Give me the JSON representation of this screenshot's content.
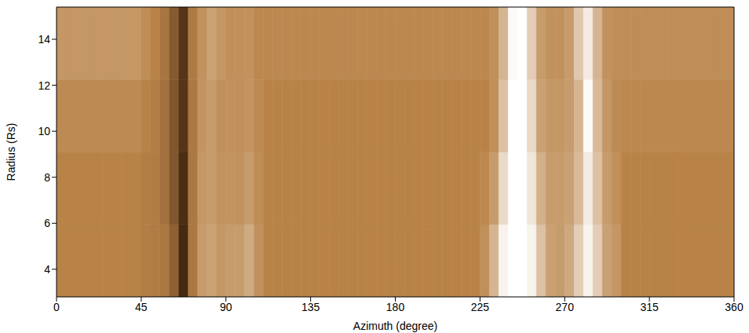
{
  "chart_data": {
    "type": "heatmap",
    "xlabel": "Azimuth (degree)",
    "ylabel": "Radius (Rs)",
    "xlim": [
      0,
      360
    ],
    "xticks": [
      0,
      45,
      90,
      135,
      180,
      225,
      270,
      315,
      360
    ],
    "ylim": [
      2.8,
      15.4
    ],
    "yticks": [
      4,
      6,
      8,
      10,
      12,
      14
    ],
    "zlim": [
      0,
      1
    ],
    "x_edges": [
      0,
      5,
      10,
      15,
      20,
      25,
      30,
      35,
      40,
      45,
      50,
      55,
      60,
      65,
      70,
      75,
      80,
      85,
      90,
      95,
      100,
      105,
      110,
      115,
      120,
      125,
      130,
      135,
      140,
      145,
      150,
      155,
      160,
      165,
      170,
      175,
      180,
      185,
      190,
      195,
      200,
      205,
      210,
      215,
      220,
      225,
      230,
      235,
      240,
      245,
      250,
      255,
      260,
      265,
      270,
      275,
      280,
      285,
      290,
      295,
      300,
      305,
      310,
      315,
      320,
      325,
      330,
      335,
      340,
      345,
      350,
      355,
      360
    ],
    "y_edges": [
      2.8,
      5.95,
      9.1,
      12.25,
      15.4
    ],
    "cells": [
      [
        0.5,
        0.5,
        0.5,
        0.5,
        0.5,
        0.5,
        0.5,
        0.5,
        0.5,
        0.48,
        0.47,
        0.45,
        0.35,
        0.1,
        0.45,
        0.6,
        0.62,
        0.58,
        0.6,
        0.6,
        0.66,
        0.56,
        0.5,
        0.5,
        0.5,
        0.5,
        0.5,
        0.5,
        0.5,
        0.5,
        0.5,
        0.5,
        0.5,
        0.5,
        0.5,
        0.5,
        0.5,
        0.5,
        0.5,
        0.5,
        0.5,
        0.5,
        0.5,
        0.5,
        0.5,
        0.55,
        0.7,
        0.95,
        1,
        1,
        0.95,
        0.75,
        0.62,
        0.6,
        0.65,
        0.8,
        0.95,
        0.8,
        0.62,
        0.58,
        0.5,
        0.5,
        0.5,
        0.5,
        0.5,
        0.5,
        0.5,
        0.5,
        0.5,
        0.5,
        0.5,
        0.5
      ],
      [
        0.5,
        0.5,
        0.5,
        0.5,
        0.5,
        0.5,
        0.5,
        0.5,
        0.5,
        0.48,
        0.47,
        0.42,
        0.3,
        0.12,
        0.45,
        0.58,
        0.6,
        0.56,
        0.57,
        0.56,
        0.6,
        0.54,
        0.5,
        0.5,
        0.5,
        0.5,
        0.5,
        0.5,
        0.5,
        0.5,
        0.5,
        0.5,
        0.5,
        0.5,
        0.5,
        0.5,
        0.5,
        0.5,
        0.5,
        0.5,
        0.5,
        0.5,
        0.5,
        0.5,
        0.5,
        0.52,
        0.6,
        0.85,
        1,
        1,
        0.9,
        0.68,
        0.6,
        0.6,
        0.62,
        0.72,
        0.92,
        0.75,
        0.6,
        0.55,
        0.5,
        0.5,
        0.5,
        0.5,
        0.5,
        0.5,
        0.5,
        0.5,
        0.5,
        0.5,
        0.5,
        0.5
      ],
      [
        0.53,
        0.53,
        0.53,
        0.53,
        0.53,
        0.53,
        0.53,
        0.53,
        0.53,
        0.5,
        0.48,
        0.42,
        0.3,
        0.15,
        0.45,
        0.57,
        0.6,
        0.55,
        0.56,
        0.55,
        0.57,
        0.53,
        0.5,
        0.5,
        0.5,
        0.5,
        0.5,
        0.5,
        0.5,
        0.5,
        0.5,
        0.5,
        0.5,
        0.5,
        0.5,
        0.5,
        0.5,
        0.5,
        0.5,
        0.5,
        0.5,
        0.5,
        0.5,
        0.5,
        0.5,
        0.5,
        0.55,
        0.75,
        1,
        1,
        0.85,
        0.62,
        0.58,
        0.58,
        0.6,
        0.7,
        0.98,
        0.72,
        0.58,
        0.53,
        0.52,
        0.52,
        0.52,
        0.52,
        0.52,
        0.52,
        0.52,
        0.52,
        0.52,
        0.52,
        0.52,
        0.52
      ],
      [
        0.58,
        0.58,
        0.58,
        0.58,
        0.58,
        0.58,
        0.58,
        0.58,
        0.58,
        0.54,
        0.5,
        0.44,
        0.32,
        0.15,
        0.46,
        0.56,
        0.62,
        0.58,
        0.55,
        0.55,
        0.56,
        0.52,
        0.52,
        0.52,
        0.52,
        0.52,
        0.52,
        0.52,
        0.52,
        0.52,
        0.52,
        0.52,
        0.52,
        0.52,
        0.52,
        0.52,
        0.52,
        0.52,
        0.52,
        0.52,
        0.52,
        0.52,
        0.52,
        0.52,
        0.52,
        0.52,
        0.55,
        0.7,
        0.98,
        1,
        0.8,
        0.6,
        0.56,
        0.56,
        0.6,
        0.78,
        0.92,
        0.7,
        0.56,
        0.54,
        0.54,
        0.54,
        0.54,
        0.54,
        0.54,
        0.54,
        0.54,
        0.54,
        0.54,
        0.54,
        0.54,
        0.54
      ]
    ]
  }
}
